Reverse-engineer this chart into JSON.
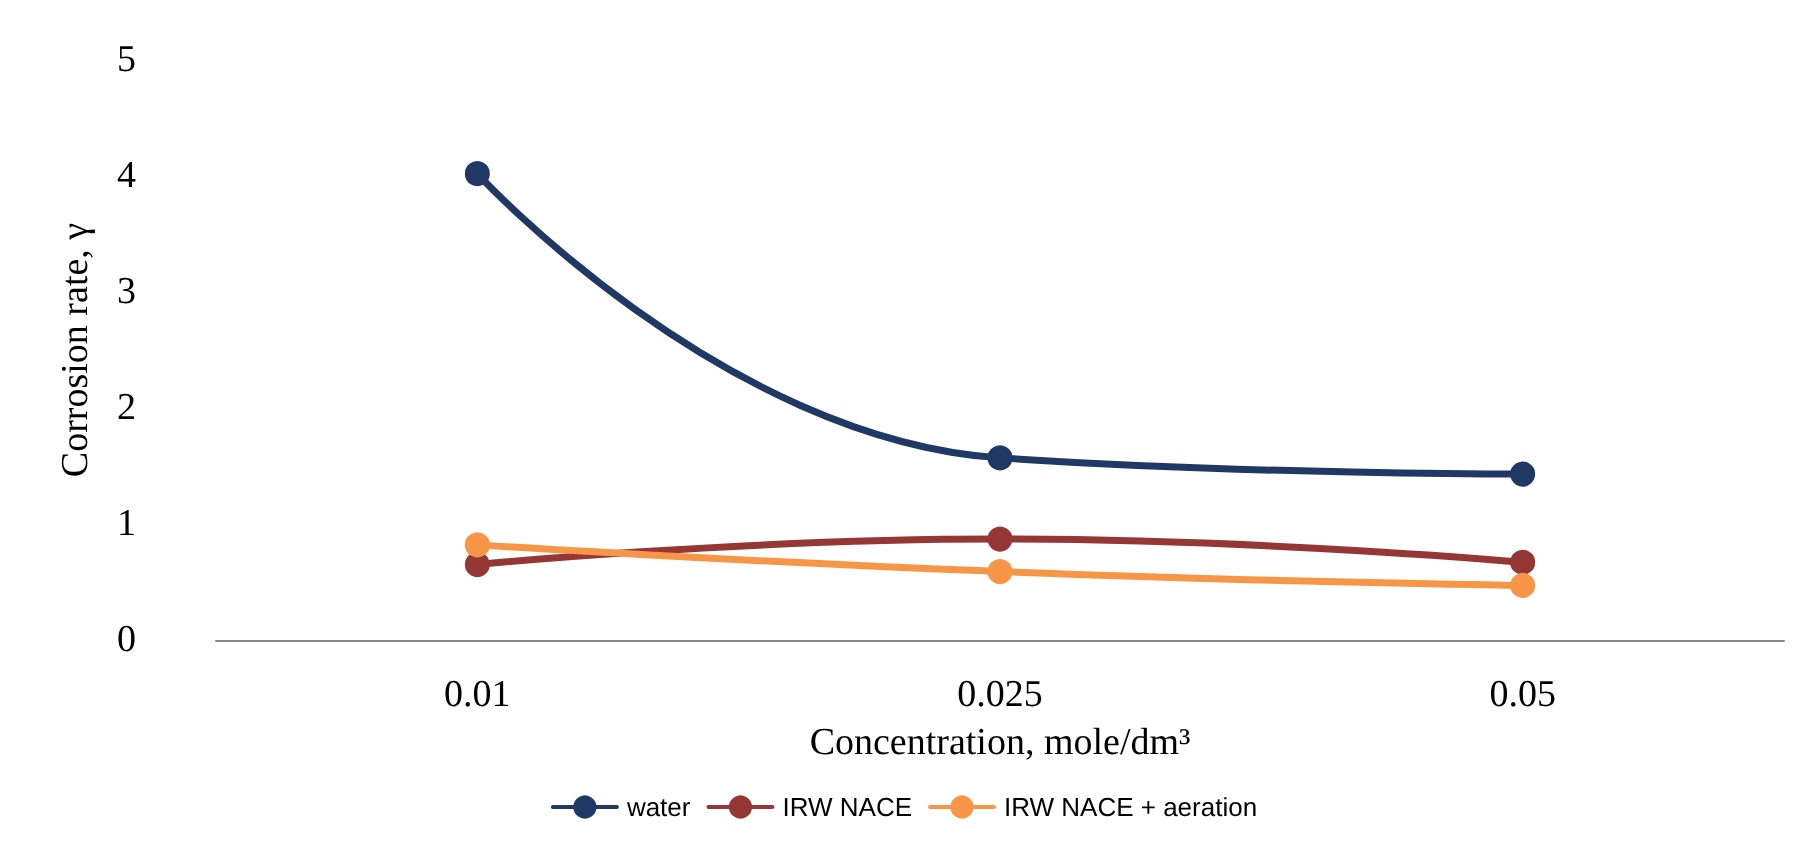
{
  "chart_data": {
    "type": "line",
    "xlabel": "Concentration, mole/dm³",
    "ylabel": "Corrosion rate, γ",
    "categories": [
      "0.01",
      "0.025",
      "0.05"
    ],
    "series": [
      {
        "name": "water",
        "color": "#203864",
        "values": [
          4.02,
          1.57,
          1.43
        ]
      },
      {
        "name": "IRW NACE",
        "color": "#953735",
        "values": [
          0.65,
          0.87,
          0.67
        ]
      },
      {
        "name": "IRW NACE + aeration",
        "color": "#f79646",
        "values": [
          0.82,
          0.59,
          0.47
        ]
      }
    ],
    "ylim": [
      0,
      5
    ],
    "yticks": [
      0,
      1,
      2,
      3,
      4,
      5
    ],
    "grid": false,
    "legend": "bottom",
    "marker": "circle",
    "line_style": "solid"
  }
}
